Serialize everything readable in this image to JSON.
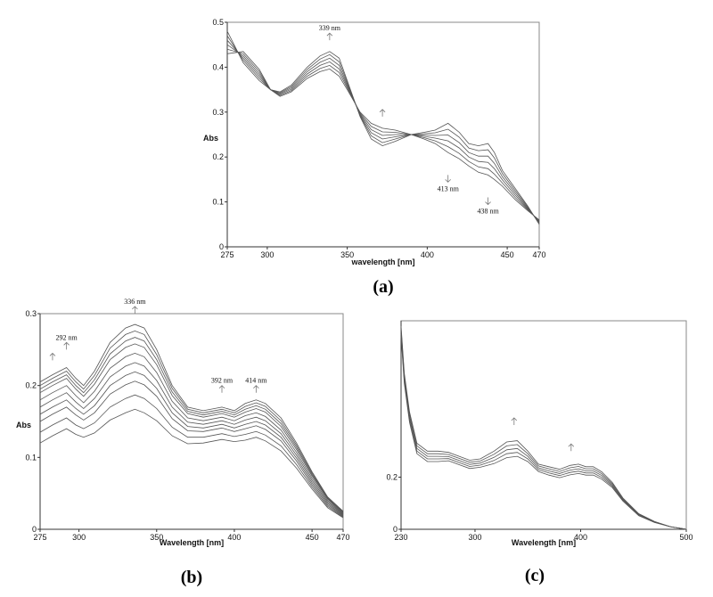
{
  "chart_data": [
    {
      "panel_label": "(a)",
      "type": "line",
      "xlabel": "wavelength [nm]",
      "ylabel": "Abs",
      "xlim": [
        275,
        470
      ],
      "ylim": [
        0,
        0.5
      ],
      "x_ticks": [
        "275",
        "300",
        "350",
        "400",
        "450",
        "470"
      ],
      "y_ticks": [
        "0",
        "0.1",
        "0.2",
        "0.3",
        "0.4",
        "0.5"
      ],
      "annotations": [
        {
          "text": "339 nm",
          "x": 339,
          "y": 0.46,
          "arrow": "up"
        },
        {
          "text": "413 nm",
          "x": 413,
          "y": 0.16,
          "arrow": "down"
        },
        {
          "text": "438 nm",
          "x": 438,
          "y": 0.11,
          "arrow": "down"
        },
        {
          "text": "",
          "x": 372,
          "y": 0.29,
          "arrow": "up"
        }
      ],
      "x": [
        275,
        285,
        295,
        302,
        308,
        315,
        325,
        333,
        339,
        345,
        350,
        358,
        365,
        372,
        380,
        390,
        398,
        405,
        413,
        420,
        426,
        432,
        438,
        442,
        447,
        455,
        463,
        470
      ],
      "series": [
        {
          "values": [
            0.48,
            0.41,
            0.37,
            0.35,
            0.345,
            0.36,
            0.4,
            0.425,
            0.435,
            0.42,
            0.37,
            0.29,
            0.24,
            0.225,
            0.235,
            0.25,
            0.255,
            0.26,
            0.275,
            0.255,
            0.23,
            0.225,
            0.23,
            0.21,
            0.17,
            0.13,
            0.09,
            0.05
          ]
        },
        {
          "values": [
            0.47,
            0.415,
            0.375,
            0.35,
            0.343,
            0.357,
            0.395,
            0.418,
            0.428,
            0.412,
            0.366,
            0.292,
            0.247,
            0.232,
            0.24,
            0.25,
            0.252,
            0.254,
            0.262,
            0.244,
            0.22,
            0.214,
            0.216,
            0.198,
            0.163,
            0.125,
            0.088,
            0.052
          ]
        },
        {
          "values": [
            0.46,
            0.42,
            0.38,
            0.35,
            0.341,
            0.354,
            0.39,
            0.411,
            0.42,
            0.404,
            0.362,
            0.294,
            0.254,
            0.24,
            0.245,
            0.25,
            0.249,
            0.248,
            0.249,
            0.232,
            0.21,
            0.202,
            0.202,
            0.186,
            0.156,
            0.12,
            0.086,
            0.054
          ]
        },
        {
          "values": [
            0.45,
            0.425,
            0.385,
            0.35,
            0.339,
            0.351,
            0.385,
            0.404,
            0.412,
            0.396,
            0.358,
            0.296,
            0.261,
            0.248,
            0.25,
            0.25,
            0.246,
            0.242,
            0.236,
            0.22,
            0.2,
            0.19,
            0.188,
            0.174,
            0.149,
            0.115,
            0.084,
            0.056
          ]
        },
        {
          "values": [
            0.44,
            0.43,
            0.39,
            0.35,
            0.337,
            0.348,
            0.38,
            0.397,
            0.404,
            0.388,
            0.354,
            0.298,
            0.268,
            0.256,
            0.255,
            0.25,
            0.243,
            0.236,
            0.223,
            0.208,
            0.19,
            0.178,
            0.174,
            0.162,
            0.142,
            0.11,
            0.082,
            0.058
          ]
        },
        {
          "values": [
            0.43,
            0.435,
            0.395,
            0.35,
            0.335,
            0.345,
            0.375,
            0.39,
            0.396,
            0.38,
            0.35,
            0.3,
            0.275,
            0.264,
            0.26,
            0.25,
            0.24,
            0.23,
            0.21,
            0.196,
            0.18,
            0.166,
            0.16,
            0.15,
            0.135,
            0.105,
            0.08,
            0.06
          ]
        }
      ]
    },
    {
      "panel_label": "(b)",
      "type": "line",
      "xlabel": "Wavelength [nm]",
      "ylabel": "Abs",
      "xlim": [
        275,
        470
      ],
      "ylim": [
        0,
        0.3
      ],
      "x_ticks": [
        "275",
        "300",
        "350",
        "400",
        "450",
        "470"
      ],
      "y_ticks": [
        "0",
        "0.1",
        "0.2",
        "0.3"
      ],
      "annotations": [
        {
          "text": "336 nm",
          "x": 336,
          "y": 0.3,
          "arrow": "up"
        },
        {
          "text": "292 nm",
          "x": 292,
          "y": 0.25,
          "arrow": "up"
        },
        {
          "text": "392 nm",
          "x": 392,
          "y": 0.19,
          "arrow": "up"
        },
        {
          "text": "414 nm",
          "x": 414,
          "y": 0.19,
          "arrow": "up"
        },
        {
          "text": "",
          "x": 283,
          "y": 0.235,
          "arrow": "up"
        }
      ],
      "x": [
        275,
        283,
        292,
        298,
        303,
        310,
        320,
        330,
        336,
        342,
        350,
        360,
        370,
        380,
        392,
        400,
        407,
        414,
        420,
        430,
        440,
        450,
        460,
        470
      ],
      "series": [
        {
          "values": [
            0.205,
            0.215,
            0.225,
            0.21,
            0.2,
            0.22,
            0.26,
            0.28,
            0.285,
            0.28,
            0.25,
            0.2,
            0.17,
            0.165,
            0.17,
            0.165,
            0.175,
            0.18,
            0.175,
            0.155,
            0.12,
            0.08,
            0.045,
            0.025
          ]
        },
        {
          "values": [
            0.2,
            0.21,
            0.22,
            0.205,
            0.195,
            0.214,
            0.252,
            0.271,
            0.276,
            0.271,
            0.243,
            0.196,
            0.167,
            0.162,
            0.167,
            0.162,
            0.171,
            0.176,
            0.171,
            0.151,
            0.117,
            0.078,
            0.044,
            0.024
          ]
        },
        {
          "values": [
            0.195,
            0.205,
            0.215,
            0.2,
            0.19,
            0.208,
            0.244,
            0.262,
            0.267,
            0.262,
            0.236,
            0.191,
            0.164,
            0.159,
            0.164,
            0.159,
            0.167,
            0.172,
            0.167,
            0.147,
            0.114,
            0.076,
            0.043,
            0.023
          ]
        },
        {
          "values": [
            0.19,
            0.2,
            0.21,
            0.195,
            0.185,
            0.202,
            0.236,
            0.253,
            0.258,
            0.253,
            0.229,
            0.186,
            0.161,
            0.156,
            0.161,
            0.156,
            0.163,
            0.168,
            0.163,
            0.143,
            0.111,
            0.074,
            0.042,
            0.022
          ]
        },
        {
          "values": [
            0.18,
            0.19,
            0.2,
            0.186,
            0.176,
            0.192,
            0.224,
            0.24,
            0.245,
            0.24,
            0.218,
            0.178,
            0.155,
            0.151,
            0.156,
            0.151,
            0.158,
            0.162,
            0.157,
            0.138,
            0.107,
            0.071,
            0.04,
            0.021
          ]
        },
        {
          "values": [
            0.17,
            0.18,
            0.19,
            0.177,
            0.168,
            0.182,
            0.212,
            0.227,
            0.232,
            0.227,
            0.207,
            0.17,
            0.149,
            0.146,
            0.151,
            0.146,
            0.152,
            0.156,
            0.151,
            0.133,
            0.103,
            0.068,
            0.038,
            0.02
          ]
        },
        {
          "values": [
            0.16,
            0.17,
            0.18,
            0.168,
            0.16,
            0.172,
            0.2,
            0.214,
            0.219,
            0.214,
            0.196,
            0.162,
            0.143,
            0.141,
            0.146,
            0.141,
            0.146,
            0.15,
            0.145,
            0.128,
            0.099,
            0.065,
            0.036,
            0.019
          ]
        },
        {
          "values": [
            0.15,
            0.16,
            0.17,
            0.159,
            0.152,
            0.162,
            0.188,
            0.201,
            0.206,
            0.201,
            0.185,
            0.154,
            0.137,
            0.136,
            0.141,
            0.136,
            0.14,
            0.144,
            0.139,
            0.123,
            0.095,
            0.062,
            0.034,
            0.018
          ]
        },
        {
          "values": [
            0.135,
            0.145,
            0.155,
            0.145,
            0.14,
            0.148,
            0.17,
            0.182,
            0.187,
            0.182,
            0.168,
            0.142,
            0.128,
            0.128,
            0.133,
            0.129,
            0.132,
            0.136,
            0.131,
            0.116,
            0.09,
            0.059,
            0.032,
            0.017
          ]
        },
        {
          "values": [
            0.12,
            0.13,
            0.14,
            0.132,
            0.128,
            0.134,
            0.152,
            0.162,
            0.167,
            0.162,
            0.151,
            0.13,
            0.119,
            0.12,
            0.125,
            0.122,
            0.124,
            0.128,
            0.123,
            0.109,
            0.085,
            0.056,
            0.03,
            0.016
          ]
        }
      ]
    },
    {
      "panel_label": "(c)",
      "type": "line",
      "xlabel": "Wavelength [nm]",
      "ylabel": "",
      "xlim": [
        230,
        500
      ],
      "ylim": [
        0,
        0.8
      ],
      "x_ticks": [
        "230",
        "300",
        "400",
        "500"
      ],
      "y_ticks": [
        "0",
        "0.2"
      ],
      "annotations": [
        {
          "text": "",
          "x": 337,
          "y": 0.4,
          "arrow": "up"
        },
        {
          "text": "",
          "x": 391,
          "y": 0.3,
          "arrow": "up"
        }
      ],
      "x": [
        230,
        233,
        238,
        245,
        255,
        265,
        275,
        285,
        295,
        305,
        318,
        330,
        340,
        350,
        360,
        370,
        380,
        390,
        398,
        405,
        412,
        420,
        430,
        440,
        455,
        470,
        485,
        500
      ],
      "series": [
        {
          "values": [
            0.78,
            0.6,
            0.45,
            0.33,
            0.3,
            0.3,
            0.295,
            0.28,
            0.265,
            0.27,
            0.3,
            0.335,
            0.34,
            0.3,
            0.25,
            0.24,
            0.23,
            0.245,
            0.25,
            0.24,
            0.24,
            0.22,
            0.18,
            0.12,
            0.06,
            0.03,
            0.01,
            0
          ]
        },
        {
          "values": [
            0.77,
            0.59,
            0.44,
            0.32,
            0.29,
            0.29,
            0.287,
            0.272,
            0.257,
            0.262,
            0.288,
            0.32,
            0.325,
            0.29,
            0.243,
            0.232,
            0.222,
            0.236,
            0.241,
            0.232,
            0.232,
            0.213,
            0.175,
            0.117,
            0.058,
            0.029,
            0.01,
            0
          ]
        },
        {
          "values": [
            0.76,
            0.58,
            0.43,
            0.31,
            0.28,
            0.28,
            0.279,
            0.264,
            0.249,
            0.254,
            0.276,
            0.305,
            0.31,
            0.28,
            0.236,
            0.224,
            0.214,
            0.227,
            0.232,
            0.224,
            0.224,
            0.206,
            0.17,
            0.114,
            0.056,
            0.028,
            0.01,
            0
          ]
        },
        {
          "values": [
            0.75,
            0.57,
            0.42,
            0.3,
            0.27,
            0.27,
            0.271,
            0.256,
            0.241,
            0.246,
            0.264,
            0.29,
            0.295,
            0.27,
            0.229,
            0.216,
            0.206,
            0.218,
            0.223,
            0.216,
            0.216,
            0.199,
            0.165,
            0.111,
            0.054,
            0.027,
            0.01,
            0
          ]
        },
        {
          "values": [
            0.74,
            0.56,
            0.41,
            0.29,
            0.26,
            0.26,
            0.263,
            0.248,
            0.233,
            0.238,
            0.252,
            0.275,
            0.28,
            0.26,
            0.222,
            0.208,
            0.198,
            0.209,
            0.214,
            0.208,
            0.208,
            0.192,
            0.16,
            0.108,
            0.052,
            0.026,
            0.01,
            0
          ]
        }
      ]
    }
  ]
}
